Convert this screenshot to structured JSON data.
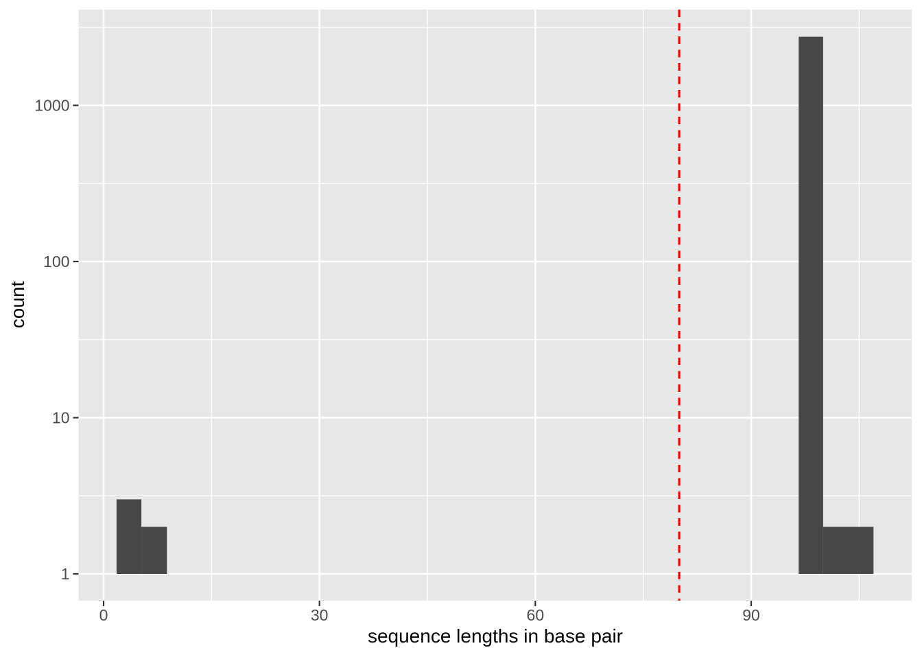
{
  "chart_data": {
    "type": "bar",
    "subtype": "histogram",
    "title": "",
    "xlabel": "sequence lengths in base pair",
    "ylabel": "count",
    "x_axis": {
      "ticks": [
        0,
        30,
        60,
        90
      ],
      "tick_labels": [
        "0",
        "30",
        "60",
        "90"
      ],
      "minor_ticks": [
        15,
        45,
        75,
        105
      ],
      "range": [
        -3.5,
        112.5
      ]
    },
    "y_axis": {
      "scale": "log10",
      "ticks": [
        1,
        10,
        100,
        1000
      ],
      "tick_labels": [
        "1",
        "10",
        "100",
        "1000"
      ],
      "minor_ticks": [
        3.162,
        31.62,
        316.2,
        3162
      ],
      "range_log10": [
        -0.17,
        3.62
      ]
    },
    "bars": [
      {
        "x_start": 1.8,
        "x_end": 5.25,
        "count": 3
      },
      {
        "x_start": 5.25,
        "x_end": 8.8,
        "count": 2
      },
      {
        "x_start": 96.6,
        "x_end": 100.0,
        "count": 2750
      },
      {
        "x_start": 100.0,
        "x_end": 107.0,
        "count": 2
      }
    ],
    "vline": {
      "x": 80,
      "style": "dashed",
      "color": "#FF0000"
    },
    "grid": "major+minor",
    "legend": null,
    "colors": {
      "bar_fill": "#474747",
      "panel_background": "#E7E7E7",
      "grid": "#FFFFFF",
      "tick_text": "#4D4D4D",
      "tick_mark": "#333333",
      "axis_title": "#000000",
      "figure_background": "#FFFFFF"
    }
  }
}
